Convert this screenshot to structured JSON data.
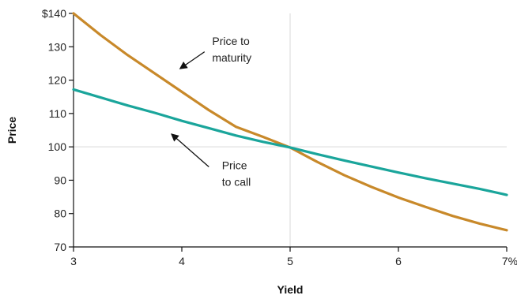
{
  "chart_data": {
    "type": "line",
    "xlabel": "Yield",
    "ylabel": "Price",
    "xlim": [
      3,
      7
    ],
    "ylim": [
      70,
      140
    ],
    "x_ticks": [
      {
        "value": 3,
        "label": "3"
      },
      {
        "value": 4,
        "label": "4"
      },
      {
        "value": 5,
        "label": "5"
      },
      {
        "value": 6,
        "label": "6"
      },
      {
        "value": 7,
        "label": "7%"
      }
    ],
    "y_ticks": [
      {
        "value": 70,
        "label": "70"
      },
      {
        "value": 80,
        "label": "80"
      },
      {
        "value": 90,
        "label": "90"
      },
      {
        "value": 100,
        "label": "100"
      },
      {
        "value": 110,
        "label": "110"
      },
      {
        "value": 120,
        "label": "120"
      },
      {
        "value": 130,
        "label": "130"
      },
      {
        "value": 140,
        "label": "$140"
      }
    ],
    "grid": {
      "x": false,
      "y": false
    },
    "reference_lines": [
      {
        "axis": "x",
        "value": 5
      },
      {
        "axis": "y",
        "value": 100
      }
    ],
    "series": [
      {
        "key": "maturity",
        "color": "#c8892a",
        "x": [
          3,
          3.25,
          3.5,
          3.75,
          4,
          4.25,
          4.5,
          4.75,
          5,
          5.25,
          5.5,
          5.75,
          6,
          6.25,
          6.5,
          6.75,
          7
        ],
        "values": [
          140,
          133.5,
          127.5,
          122,
          116.5,
          111,
          106,
          103,
          99.8,
          95.5,
          91.5,
          88,
          84.8,
          82,
          79.3,
          77,
          75
        ]
      },
      {
        "key": "call",
        "color": "#1aa59b",
        "x": [
          3,
          3.25,
          3.5,
          3.75,
          4,
          4.25,
          4.5,
          4.75,
          5,
          5.25,
          5.5,
          5.75,
          6,
          6.25,
          6.5,
          6.75,
          7
        ],
        "values": [
          117.2,
          114.8,
          112.4,
          110.2,
          107.8,
          105.6,
          103.4,
          101.5,
          99.8,
          97.8,
          95.9,
          94.1,
          92.3,
          90.6,
          89.0,
          87.4,
          85.6
        ]
      }
    ],
    "annotations": [
      {
        "key": "maturity",
        "lines": [
          "Price to",
          "maturity"
        ],
        "anchor_x": 4.28,
        "anchor_y": 130.5,
        "arrow_from": [
          4.21,
          128.5
        ],
        "arrow_to": [
          4.0,
          123.8
        ]
      },
      {
        "key": "call",
        "lines": [
          "Price",
          "to call"
        ],
        "anchor_x": 4.37,
        "anchor_y": 93.3,
        "arrow_from": [
          4.25,
          94.0
        ],
        "arrow_to": [
          3.92,
          103.4
        ]
      }
    ]
  }
}
